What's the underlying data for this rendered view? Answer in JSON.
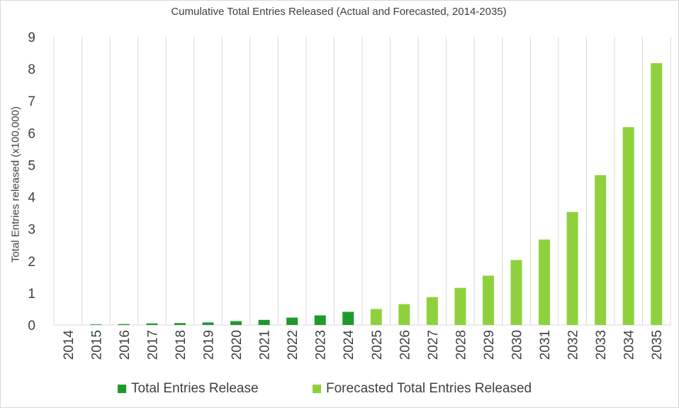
{
  "chart_data": {
    "type": "bar",
    "title": "Cumulative Total Entries Released (Actual and Forecasted, 2014-2035)",
    "ylabel": "Total Entries released (x100,000)",
    "xlabel": "",
    "ylim": [
      0,
      9
    ],
    "yticks": [
      "0",
      "1",
      "2",
      "3",
      "4",
      "5",
      "6",
      "7",
      "8",
      "9"
    ],
    "grid": "vertical",
    "legend_position": "bottom",
    "categories": [
      "2014",
      "2015",
      "2016",
      "2017",
      "2018",
      "2019",
      "2020",
      "2021",
      "2022",
      "2023",
      "2024",
      "2025",
      "2026",
      "2027",
      "2028",
      "2029",
      "2030",
      "2031",
      "2032",
      "2033",
      "2034",
      "2035"
    ],
    "series": [
      {
        "name": "Total Entries Release",
        "color": "#1e9a2c",
        "values": [
          0.0,
          0.02,
          0.03,
          0.05,
          0.06,
          0.08,
          0.12,
          0.16,
          0.23,
          0.3,
          0.41,
          null,
          null,
          null,
          null,
          null,
          null,
          null,
          null,
          null,
          null,
          null
        ]
      },
      {
        "name": "Forecasted Total Entries Released",
        "color": "#8fd13d",
        "values": [
          null,
          null,
          null,
          null,
          null,
          null,
          null,
          null,
          null,
          null,
          null,
          0.5,
          0.65,
          0.87,
          1.16,
          1.54,
          2.03,
          2.67,
          3.53,
          4.68,
          6.18,
          8.18
        ]
      }
    ]
  }
}
